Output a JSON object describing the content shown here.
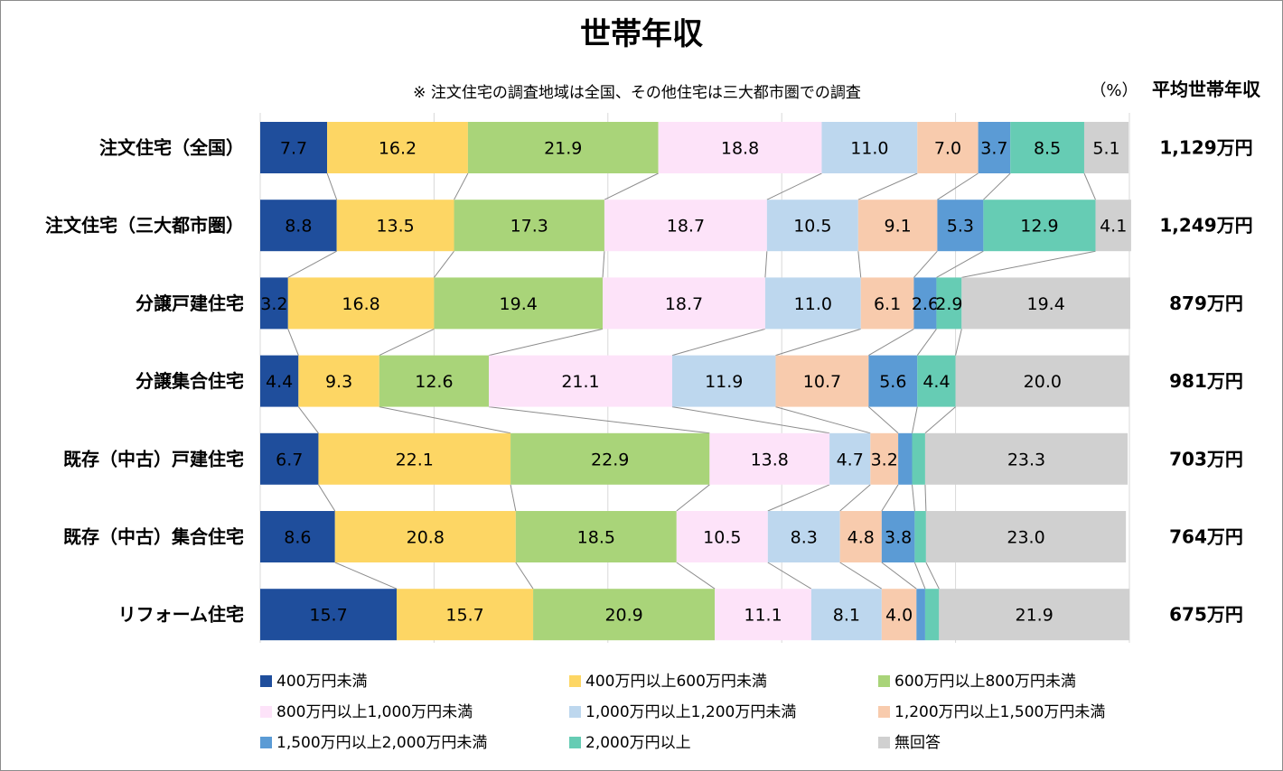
{
  "chart_data": {
    "type": "bar",
    "orientation": "horizontal",
    "stacked": "percent",
    "title": "世帯年収",
    "note": "※ 注文住宅の調査地域は全国、その他住宅は三大都市圏での調査",
    "unit_label": "（%）",
    "income_header": "平均世帯年収",
    "categories": [
      "注文住宅（全国）",
      "注文住宅（三大都市圏）",
      "分譲戸建住宅",
      "分譲集合住宅",
      "既存（中古）戸建住宅",
      "既存（中古）集合住宅",
      "リフォーム住宅"
    ],
    "average_income": [
      "1,129万円",
      "1,249万円",
      "879万円",
      "981万円",
      "703万円",
      "764万円",
      "675万円"
    ],
    "series": [
      {
        "name": "400万円未満",
        "color": "#1f4e9c",
        "label_color": "#ffffff",
        "values": [
          7.7,
          8.8,
          3.2,
          4.4,
          6.7,
          8.6,
          15.7
        ],
        "labels": [
          "7.7",
          "8.8",
          "3.2",
          "4.4",
          "6.7",
          "8.6",
          "15.7"
        ]
      },
      {
        "name": "400万円以上600万円未満",
        "color": "#fdd664",
        "label_color": "#000000",
        "values": [
          16.2,
          13.5,
          16.8,
          9.3,
          22.1,
          20.8,
          15.7
        ],
        "labels": [
          "16.2",
          "13.5",
          "16.8",
          "9.3",
          "22.1",
          "20.8",
          "15.7"
        ]
      },
      {
        "name": "600万円以上800万円未満",
        "color": "#a9d479",
        "label_color": "#000000",
        "values": [
          21.9,
          17.3,
          19.4,
          12.6,
          22.9,
          18.5,
          20.9
        ],
        "labels": [
          "21.9",
          "17.3",
          "19.4",
          "12.6",
          "22.9",
          "18.5",
          "20.9"
        ]
      },
      {
        "name": "800万円以上1,000万円未満",
        "color": "#fde3f9",
        "label_color": "#000000",
        "values": [
          18.8,
          18.7,
          18.7,
          21.1,
          13.8,
          10.5,
          11.1
        ],
        "labels": [
          "18.8",
          "18.7",
          "18.7",
          "21.1",
          "13.8",
          "10.5",
          "11.1"
        ]
      },
      {
        "name": "1,000万円以上1,200万円未満",
        "color": "#bdd7ee",
        "label_color": "#000000",
        "values": [
          11.0,
          10.5,
          11.0,
          11.9,
          4.7,
          8.3,
          8.1
        ],
        "labels": [
          "11.0",
          "10.5",
          "11.0",
          "11.9",
          "4.7",
          "8.3",
          "8.1"
        ]
      },
      {
        "name": "1,200万円以上1,500万円未満",
        "color": "#f8cbad",
        "label_color": "#000000",
        "values": [
          7.0,
          9.1,
          6.1,
          10.7,
          3.2,
          4.8,
          4.0
        ],
        "labels": [
          "7.0",
          "9.1",
          "6.1",
          "10.7",
          "3.2",
          "4.8",
          "4.0"
        ]
      },
      {
        "name": "1,500万円以上2,000万円未満",
        "color": "#5b9bd5",
        "label_color": "#000000",
        "values": [
          3.7,
          5.3,
          2.6,
          5.6,
          1.6,
          3.8,
          1.0
        ],
        "labels": [
          "3.7",
          "5.3",
          "2.6",
          "5.6",
          "",
          "3.8",
          ""
        ]
      },
      {
        "name": "2,000万円以上",
        "color": "#66ccb4",
        "label_color": "#000000",
        "values": [
          8.5,
          12.9,
          2.9,
          4.4,
          1.5,
          1.3,
          1.6
        ],
        "labels": [
          "8.5",
          "12.9",
          "2.9",
          "4.4",
          "",
          "",
          ""
        ]
      },
      {
        "name": "無回答",
        "color": "#d0d0d0",
        "label_color": "#000000",
        "values": [
          5.1,
          4.1,
          19.4,
          20.0,
          23.3,
          23.0,
          21.9
        ],
        "labels": [
          "5.1",
          "4.1",
          "19.4",
          "20.0",
          "23.3",
          "23.0",
          "21.9"
        ]
      }
    ],
    "xlim": [
      0,
      100
    ],
    "grid": true,
    "legend_position": "bottom"
  }
}
